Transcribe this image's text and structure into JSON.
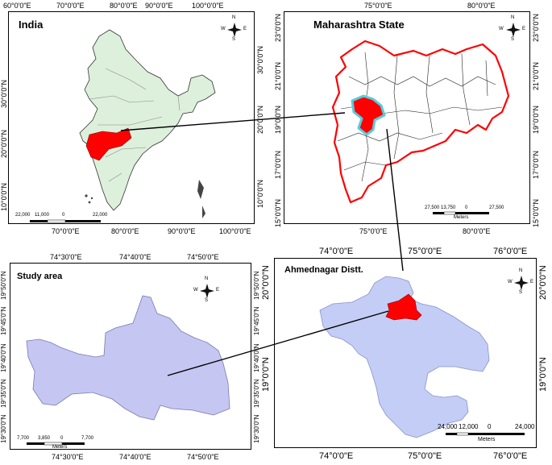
{
  "india": {
    "title": "India",
    "top_ticks": [
      "60°0'0\"E",
      "70°0'0\"E",
      "80°0'0\"E",
      "90°0'0\"E",
      "100°0'0\"E"
    ],
    "bottom_ticks": [
      "70°0'0\"E",
      "80°0'0\"E",
      "90°0'0\"E",
      "100°0'0\"E"
    ],
    "left_ticks": [
      "30°0'0\"N",
      "20°0'0\"N",
      "10°0'0\"N"
    ],
    "right_ticks": [
      "30°0'0\"N",
      "20°0'0\"N",
      "10°0'0\"N"
    ],
    "scale_labels": [
      "22,000",
      "11,000",
      "0",
      "22,000"
    ]
  },
  "maharashtra": {
    "title": "Maharashtra State",
    "top_ticks": [
      "75°0'0\"E",
      "80°0'0\"E"
    ],
    "bottom_ticks": [
      "75°0'0\"E",
      "80°0'0\"E"
    ],
    "left_ticks": [
      "23°0'0\"N",
      "21°0'0\"N",
      "19°0'0\"N",
      "17°0'0\"N",
      "15°0'0\"N"
    ],
    "right_ticks": [
      "23°0'0\"N",
      "21°0'0\"N",
      "19°0'0\"N",
      "17°0'0\"N",
      "15°0'0\"N"
    ],
    "scale_labels": [
      "27,500",
      "13,750",
      "0",
      "27,500"
    ],
    "scale_unit": "Meters"
  },
  "study_area": {
    "title": "Study area",
    "top_ticks": [
      "74°30'0\"E",
      "74°40'0\"E",
      "74°50'0\"E"
    ],
    "bottom_ticks": [
      "74°30'0\"E",
      "74°40'0\"E",
      "74°50'0\"E"
    ],
    "left_ticks": [
      "19°50'0\"N",
      "19°45'0\"N",
      "19°40'0\"N",
      "19°35'0\"N",
      "19°30'0\"N"
    ],
    "right_ticks": [
      "19°50'0\"N",
      "19°45'0\"N",
      "19°40'0\"N",
      "19°35'0\"N",
      "19°30'0\"N"
    ],
    "scale_labels": [
      "7,700",
      "3,850",
      "0",
      "7,700"
    ],
    "scale_unit": "Meters"
  },
  "ahmednagar": {
    "title": "Ahmednagar Distt.",
    "top_ticks": [
      "74°0'0\"E",
      "75°0'0\"E",
      "76°0'0\"E"
    ],
    "bottom_ticks": [
      "74°0'0\"E",
      "75°0'0\"E",
      "76°0'0\"E"
    ],
    "left_ticks": [
      "20°0'0\"N",
      "19°0'0\"N"
    ],
    "right_ticks": [
      "20°0'0\"N",
      "19°0'0\"N"
    ],
    "scale_labels": [
      "24,000",
      "12,000",
      "0",
      "24,000"
    ],
    "scale_unit": "Meters"
  },
  "compass": {
    "n": "N",
    "s": "S",
    "e": "E",
    "w": "W"
  },
  "colors": {
    "india_fill": "#dcf0dc",
    "highlight": "#ff0000",
    "maharashtra_border": "#ff0000",
    "district_halo": "#55ccdd",
    "ahmednagar_fill": "#c3cdf5",
    "study_fill": "#c6c6f2"
  }
}
